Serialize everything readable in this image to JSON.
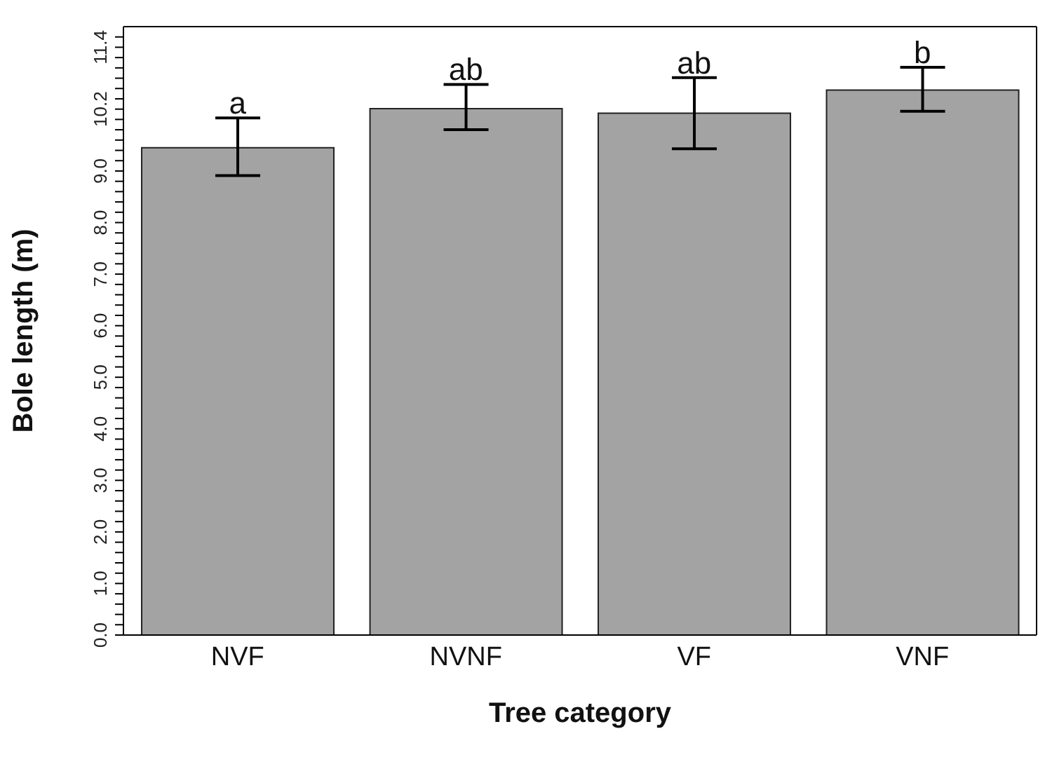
{
  "chart_data": {
    "type": "bar",
    "xlabel": "Tree category",
    "ylabel": "Bole length (m)",
    "categories": [
      "NVF",
      "NVNF",
      "VF",
      "VNF"
    ],
    "values": [
      9.45,
      10.21,
      10.12,
      10.57
    ],
    "errors": [
      [
        8.91,
        10.03
      ],
      [
        9.8,
        10.68
      ],
      [
        9.43,
        10.81
      ],
      [
        10.16,
        11.01
      ]
    ],
    "color": "#a3a3a3",
    "ylim": [
      0,
      11.8
    ],
    "yticks": [
      {
        "value": 0,
        "label": "0.0"
      },
      {
        "value": 0.2,
        "label": null
      },
      {
        "value": 0.4,
        "label": null
      },
      {
        "value": 0.6,
        "label": null
      },
      {
        "value": 0.8,
        "label": null
      },
      {
        "value": 1,
        "label": "1.0"
      },
      {
        "value": 1.2,
        "label": null
      },
      {
        "value": 1.4,
        "label": null
      },
      {
        "value": 1.6,
        "label": null
      },
      {
        "value": 1.8,
        "label": null
      },
      {
        "value": 2,
        "label": "2.0"
      },
      {
        "value": 2.2,
        "label": null
      },
      {
        "value": 2.4,
        "label": null
      },
      {
        "value": 2.6,
        "label": null
      },
      {
        "value": 2.8,
        "label": null
      },
      {
        "value": 3,
        "label": "3.0"
      },
      {
        "value": 3.2,
        "label": null
      },
      {
        "value": 3.4,
        "label": null
      },
      {
        "value": 3.6,
        "label": null
      },
      {
        "value": 3.8,
        "label": null
      },
      {
        "value": 4,
        "label": "4.0"
      },
      {
        "value": 4.2,
        "label": null
      },
      {
        "value": 4.4,
        "label": null
      },
      {
        "value": 4.6,
        "label": null
      },
      {
        "value": 4.8,
        "label": null
      },
      {
        "value": 5,
        "label": "5.0"
      },
      {
        "value": 5.2,
        "label": null
      },
      {
        "value": 5.4,
        "label": null
      },
      {
        "value": 5.6,
        "label": null
      },
      {
        "value": 5.8,
        "label": null
      },
      {
        "value": 6,
        "label": "6.0"
      },
      {
        "value": 6.2,
        "label": null
      },
      {
        "value": 6.4,
        "label": null
      },
      {
        "value": 6.6,
        "label": null
      },
      {
        "value": 6.8,
        "label": null
      },
      {
        "value": 7,
        "label": "7.0"
      },
      {
        "value": 7.2,
        "label": null
      },
      {
        "value": 7.4,
        "label": null
      },
      {
        "value": 7.6,
        "label": null
      },
      {
        "value": 7.8,
        "label": null
      },
      {
        "value": 8,
        "label": "8.0"
      },
      {
        "value": 8.2,
        "label": null
      },
      {
        "value": 8.4,
        "label": null
      },
      {
        "value": 8.6,
        "label": null
      },
      {
        "value": 8.8,
        "label": null
      },
      {
        "value": 9,
        "label": "9.0"
      },
      {
        "value": 9.2,
        "label": null
      },
      {
        "value": 9.4,
        "label": null
      },
      {
        "value": 9.6,
        "label": null
      },
      {
        "value": 9.8,
        "label": null
      },
      {
        "value": 10,
        "label": null
      },
      {
        "value": 10.2,
        "label": "10.2"
      },
      {
        "value": 10.4,
        "label": null
      },
      {
        "value": 10.6,
        "label": null
      },
      {
        "value": 10.8,
        "label": null
      },
      {
        "value": 11,
        "label": null
      },
      {
        "value": 11.2,
        "label": null
      },
      {
        "value": 11.4,
        "label": "11.4"
      },
      {
        "value": 11.6,
        "label": null
      }
    ],
    "annotations": [
      {
        "text": "a",
        "x": "NVF",
        "y": 10.03
      },
      {
        "text": "ab",
        "x": "NVNF",
        "y": 10.68
      },
      {
        "text": "ab",
        "x": "VF",
        "y": 10.81
      },
      {
        "text": "b",
        "x": "VNF",
        "y": 11.01
      }
    ]
  }
}
